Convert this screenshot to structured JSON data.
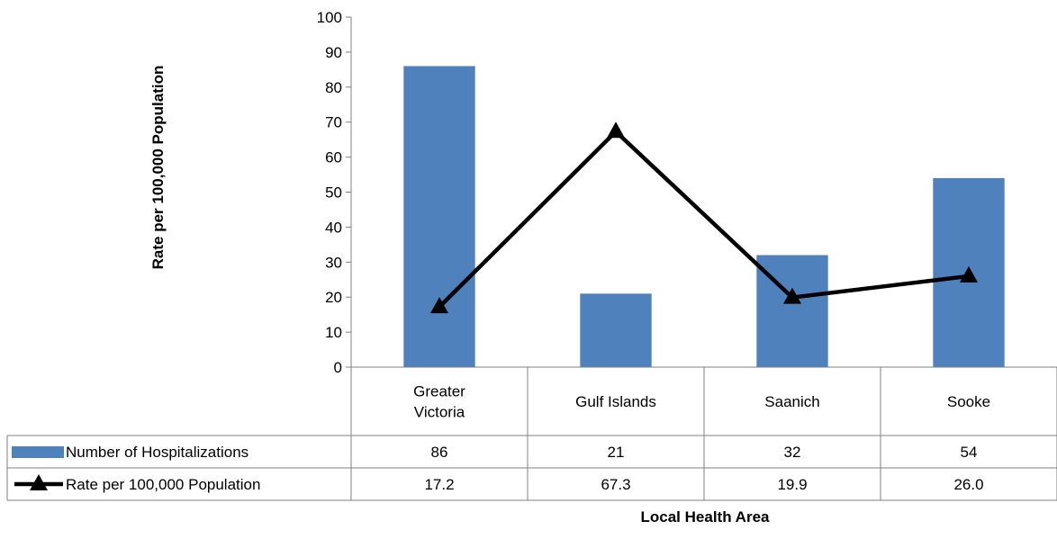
{
  "chart_data": {
    "type": "bar",
    "xlabel": "Local Health Area",
    "ylabel": "Rate per 100,000 Population",
    "ylim": [
      0,
      100
    ],
    "yticks": [
      0,
      10,
      20,
      30,
      40,
      50,
      60,
      70,
      80,
      90,
      100
    ],
    "categories": [
      [
        "Greater",
        "Victoria"
      ],
      [
        "Gulf Islands"
      ],
      [
        "Saanich"
      ],
      [
        "Sooke"
      ]
    ],
    "series": [
      {
        "name": "Number of Hospitalizations",
        "type": "bar",
        "color": "#4f81bd",
        "values": [
          86,
          21,
          32,
          54
        ],
        "table_values": [
          "86",
          "21",
          "32",
          "54"
        ]
      },
      {
        "name": "Rate per 100,000 Population",
        "type": "line",
        "marker": "triangle",
        "color": "#000000",
        "values": [
          17.2,
          67.3,
          19.9,
          26.0
        ],
        "table_values": [
          "17.2",
          "67.3",
          "19.9",
          "26.0"
        ]
      }
    ],
    "data_table": true,
    "grid": false,
    "legend": "data-table"
  }
}
